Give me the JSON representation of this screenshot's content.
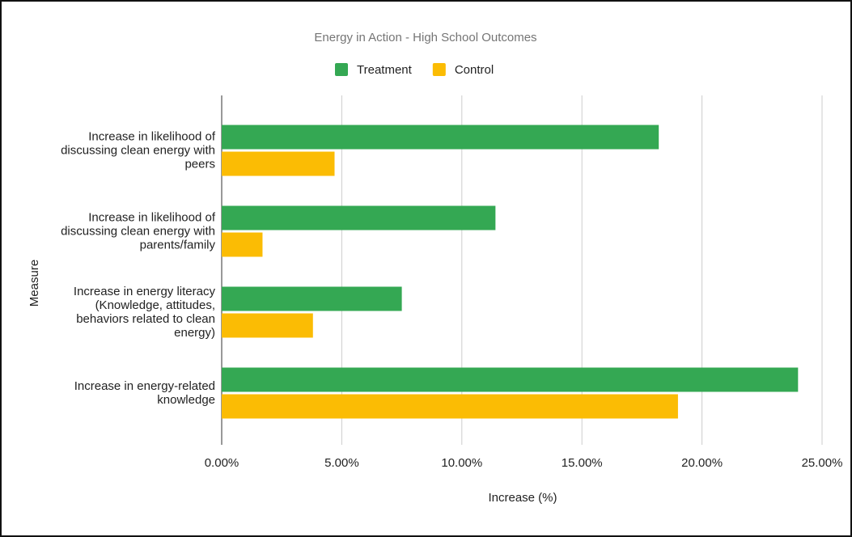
{
  "chart_data": {
    "type": "hbar",
    "title": "Energy in Action - High School Outcomes",
    "x_label": "Increase (%)",
    "y_label": "Measure",
    "categories": [
      "Increase in likelihood of discussing clean energy with peers",
      "Increase in likelihood of discussing clean energy with parents/family",
      "Increase in energy literacy (Knowledge, attitudes, behaviors related to clean energy)",
      "Increase in energy-related knowledge"
    ],
    "series": [
      {
        "name": "Treatment",
        "color": "#34a853",
        "values": [
          18.2,
          11.4,
          7.5,
          24.0
        ]
      },
      {
        "name": "Control",
        "color": "#fbbc04",
        "values": [
          4.7,
          1.7,
          3.8,
          19.0
        ]
      }
    ],
    "xlim": [
      0,
      25
    ],
    "xticks": [
      {
        "value": 0,
        "label": "0.00%"
      },
      {
        "value": 5,
        "label": "5.00%"
      },
      {
        "value": 10,
        "label": "10.00%"
      },
      {
        "value": 15,
        "label": "15.00%"
      },
      {
        "value": 20,
        "label": "20.00%"
      },
      {
        "value": 25,
        "label": "25.00%"
      }
    ],
    "grid": true,
    "legend": "top"
  }
}
